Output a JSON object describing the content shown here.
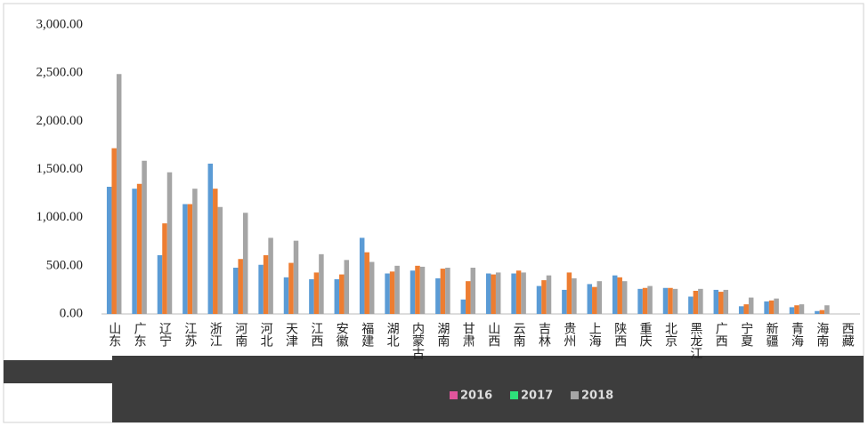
{
  "chart_data": {
    "type": "bar",
    "categories": [
      "山东",
      "广东",
      "辽宁",
      "江苏",
      "浙江",
      "河南",
      "河北",
      "天津",
      "江西",
      "安徽",
      "福建",
      "湖北",
      "内蒙古",
      "湖南",
      "甘肃",
      "山西",
      "云南",
      "吉林",
      "贵州",
      "上海",
      "陕西",
      "重庆",
      "北京",
      "黑龙江",
      "广西",
      "宁夏",
      "新疆",
      "青海",
      "海南",
      "西藏"
    ],
    "series": [
      {
        "name": "2016",
        "color": "#5b9bd5",
        "legend_color": "#e0559c",
        "values": [
          1320,
          1300,
          610,
          1140,
          1560,
          480,
          510,
          380,
          360,
          360,
          790,
          420,
          450,
          370,
          150,
          420,
          420,
          290,
          250,
          310,
          400,
          260,
          270,
          180,
          250,
          80,
          130,
          70,
          30,
          0
        ]
      },
      {
        "name": "2017",
        "color": "#ed7d31",
        "legend_color": "#2ee07a",
        "values": [
          1720,
          1350,
          940,
          1140,
          1300,
          570,
          610,
          530,
          430,
          410,
          640,
          440,
          500,
          470,
          340,
          410,
          450,
          350,
          430,
          280,
          380,
          270,
          270,
          240,
          230,
          100,
          140,
          90,
          40,
          0
        ]
      },
      {
        "name": "2018",
        "color": "#a5a5a5",
        "legend_color": "#a5a5a5",
        "values": [
          2490,
          1590,
          1470,
          1300,
          1110,
          1050,
          790,
          760,
          620,
          560,
          540,
          500,
          490,
          480,
          480,
          430,
          430,
          400,
          370,
          340,
          340,
          290,
          260,
          260,
          250,
          170,
          160,
          100,
          90,
          0
        ]
      }
    ],
    "ylim": [
      0,
      3000
    ],
    "yticks": [
      {
        "value": 0,
        "label": "0.00"
      },
      {
        "value": 500,
        "label": "500.00"
      },
      {
        "value": 1000,
        "label": "1,000.00"
      },
      {
        "value": 1500,
        "label": "1,500.00"
      },
      {
        "value": 2000,
        "label": "2,000.00"
      },
      {
        "value": 2500,
        "label": "2,500.00"
      },
      {
        "value": 3000,
        "label": "3,000.00"
      }
    ],
    "grid": false
  }
}
